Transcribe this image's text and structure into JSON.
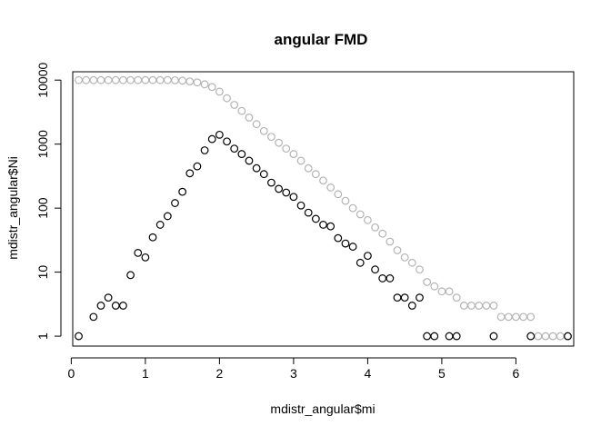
{
  "chart_data": {
    "type": "scatter",
    "title": "angular FMD",
    "xlabel": "mdistr_angular$mi",
    "ylabel": "mdistr_angular$Ni",
    "xlim": [
      0.02,
      6.78
    ],
    "ylim": [
      0.7,
      13500
    ],
    "ylog": true,
    "grid": false,
    "xticks": [
      0,
      1,
      2,
      3,
      4,
      5,
      6
    ],
    "yticks": [
      1,
      10,
      100,
      1000,
      10000
    ],
    "xtick_labels": [
      "0",
      "1",
      "2",
      "3",
      "4",
      "5",
      "6"
    ],
    "ytick_labels": [
      "1",
      "10",
      "100",
      "1000",
      "10000"
    ],
    "series": [
      {
        "color": "#b3b3b3",
        "marker": "open-circle",
        "points": [
          [
            0.1,
            10000
          ],
          [
            0.2,
            10000
          ],
          [
            0.3,
            10000
          ],
          [
            0.4,
            10000
          ],
          [
            0.5,
            10000
          ],
          [
            0.6,
            10000
          ],
          [
            0.7,
            10000
          ],
          [
            0.8,
            10000
          ],
          [
            0.9,
            10000
          ],
          [
            1.0,
            10000
          ],
          [
            1.1,
            10000
          ],
          [
            1.2,
            10000
          ],
          [
            1.3,
            10000
          ],
          [
            1.4,
            9950
          ],
          [
            1.5,
            9800
          ],
          [
            1.6,
            9550
          ],
          [
            1.7,
            9200
          ],
          [
            1.8,
            8600
          ],
          [
            1.9,
            7800
          ],
          [
            2.0,
            6600
          ],
          [
            2.1,
            5200
          ],
          [
            2.2,
            4100
          ],
          [
            2.3,
            3300
          ],
          [
            2.4,
            2600
          ],
          [
            2.5,
            2050
          ],
          [
            2.6,
            1600
          ],
          [
            2.7,
            1300
          ],
          [
            2.8,
            1050
          ],
          [
            2.9,
            850
          ],
          [
            3.0,
            700
          ],
          [
            3.1,
            550
          ],
          [
            3.2,
            420
          ],
          [
            3.3,
            340
          ],
          [
            3.4,
            270
          ],
          [
            3.5,
            210
          ],
          [
            3.6,
            165
          ],
          [
            3.7,
            130
          ],
          [
            3.8,
            100
          ],
          [
            3.9,
            80
          ],
          [
            4.0,
            65
          ],
          [
            4.1,
            50
          ],
          [
            4.2,
            40
          ],
          [
            4.3,
            30
          ],
          [
            4.4,
            22
          ],
          [
            4.5,
            17
          ],
          [
            4.6,
            14
          ],
          [
            4.7,
            11
          ],
          [
            4.8,
            7
          ],
          [
            4.9,
            6
          ],
          [
            5.0,
            5
          ],
          [
            5.1,
            5
          ],
          [
            5.2,
            4
          ],
          [
            5.3,
            3
          ],
          [
            5.4,
            3
          ],
          [
            5.5,
            3
          ],
          [
            5.6,
            3
          ],
          [
            5.7,
            3
          ],
          [
            5.8,
            2
          ],
          [
            5.9,
            2
          ],
          [
            6.0,
            2
          ],
          [
            6.1,
            2
          ],
          [
            6.2,
            2
          ],
          [
            6.3,
            1
          ],
          [
            6.4,
            1
          ],
          [
            6.5,
            1
          ],
          [
            6.6,
            1
          ],
          [
            6.7,
            1
          ]
        ]
      },
      {
        "color": "#000000",
        "marker": "open-circle",
        "points": [
          [
            0.1,
            1
          ],
          [
            0.3,
            2
          ],
          [
            0.4,
            3
          ],
          [
            0.5,
            4
          ],
          [
            0.6,
            3
          ],
          [
            0.7,
            3
          ],
          [
            0.8,
            9
          ],
          [
            0.9,
            20
          ],
          [
            1.0,
            17
          ],
          [
            1.1,
            35
          ],
          [
            1.2,
            55
          ],
          [
            1.3,
            75
          ],
          [
            1.4,
            120
          ],
          [
            1.5,
            180
          ],
          [
            1.6,
            350
          ],
          [
            1.7,
            450
          ],
          [
            1.8,
            800
          ],
          [
            1.9,
            1200
          ],
          [
            2.0,
            1400
          ],
          [
            2.1,
            1100
          ],
          [
            2.2,
            850
          ],
          [
            2.3,
            700
          ],
          [
            2.4,
            550
          ],
          [
            2.5,
            420
          ],
          [
            2.6,
            340
          ],
          [
            2.7,
            250
          ],
          [
            2.8,
            200
          ],
          [
            2.9,
            175
          ],
          [
            3.0,
            150
          ],
          [
            3.1,
            110
          ],
          [
            3.2,
            85
          ],
          [
            3.3,
            68
          ],
          [
            3.4,
            55
          ],
          [
            3.5,
            52
          ],
          [
            3.6,
            34
          ],
          [
            3.7,
            28
          ],
          [
            3.8,
            25
          ],
          [
            3.9,
            14
          ],
          [
            4.0,
            18
          ],
          [
            4.1,
            11
          ],
          [
            4.2,
            8
          ],
          [
            4.3,
            8
          ],
          [
            4.4,
            4
          ],
          [
            4.5,
            4
          ],
          [
            4.6,
            3
          ],
          [
            4.7,
            4
          ],
          [
            4.8,
            1
          ],
          [
            4.9,
            1
          ],
          [
            5.1,
            1
          ],
          [
            5.2,
            1
          ],
          [
            5.7,
            1
          ],
          [
            6.2,
            1
          ],
          [
            6.7,
            1
          ]
        ]
      }
    ]
  }
}
